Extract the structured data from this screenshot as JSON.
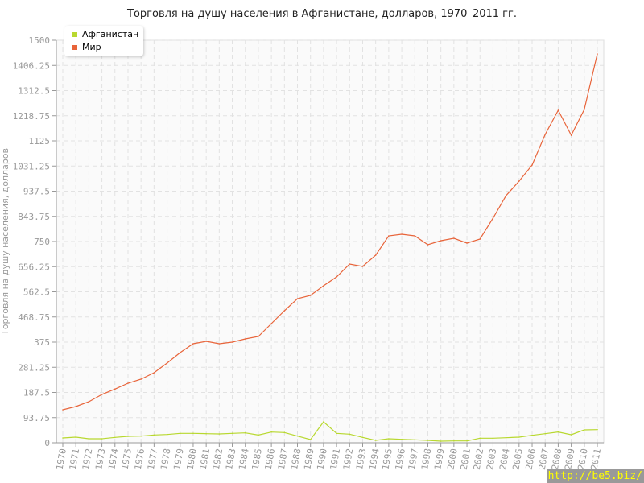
{
  "chart_data": {
    "type": "line",
    "title": "Торговля на душу населения в Афганистане, долларов, 1970–2011 гг.",
    "ylabel": "Торговля на душу населения, долларов",
    "xlabel": "",
    "ylim": [
      0,
      1500
    ],
    "yticks": [
      "0",
      "93.75",
      "187.5",
      "281.25",
      "375",
      "468.75",
      "562.5",
      "656.25",
      "750",
      "843.75",
      "937.5",
      "1031.25",
      "1125",
      "1218.75",
      "1312.5",
      "1406.25",
      "1500"
    ],
    "categories": [
      "1970",
      "1971",
      "1972",
      "1973",
      "1974",
      "1975",
      "1976",
      "1977",
      "1978",
      "1979",
      "1980",
      "1981",
      "1982",
      "1983",
      "1984",
      "1985",
      "1986",
      "1987",
      "1988",
      "1989",
      "1990",
      "1991",
      "1992",
      "1993",
      "1994",
      "1995",
      "1996",
      "1997",
      "1998",
      "1999",
      "2000",
      "2001",
      "2002",
      "2003",
      "2004",
      "2005",
      "2006",
      "2007",
      "2008",
      "2009",
      "2010",
      "2011"
    ],
    "grid": true,
    "legend_position": "top-left",
    "series": [
      {
        "name": "Афганистан",
        "color": "#b8d82f",
        "values": [
          18,
          21,
          15,
          15,
          20,
          24,
          25,
          29,
          31,
          35,
          35,
          34,
          33,
          35,
          37,
          29,
          40,
          38,
          25,
          12,
          78,
          35,
          32,
          20,
          9,
          15,
          13,
          11,
          9,
          6,
          7,
          7,
          17,
          17,
          19,
          21,
          28,
          34,
          40,
          30,
          48,
          49
        ]
      },
      {
        "name": "Мир",
        "color": "#e8643a",
        "values": [
          123,
          135,
          153,
          180,
          200,
          222,
          237,
          261,
          297,
          336,
          369,
          378,
          369,
          375,
          387,
          396,
          444,
          492,
          537,
          549,
          585,
          618,
          666,
          657,
          699,
          771,
          777,
          771,
          738,
          753,
          762,
          744,
          759,
          837,
          921,
          975,
          1035,
          1149,
          1239,
          1146,
          1242,
          1449
        ]
      }
    ]
  },
  "watermark": "http://be5.biz/"
}
